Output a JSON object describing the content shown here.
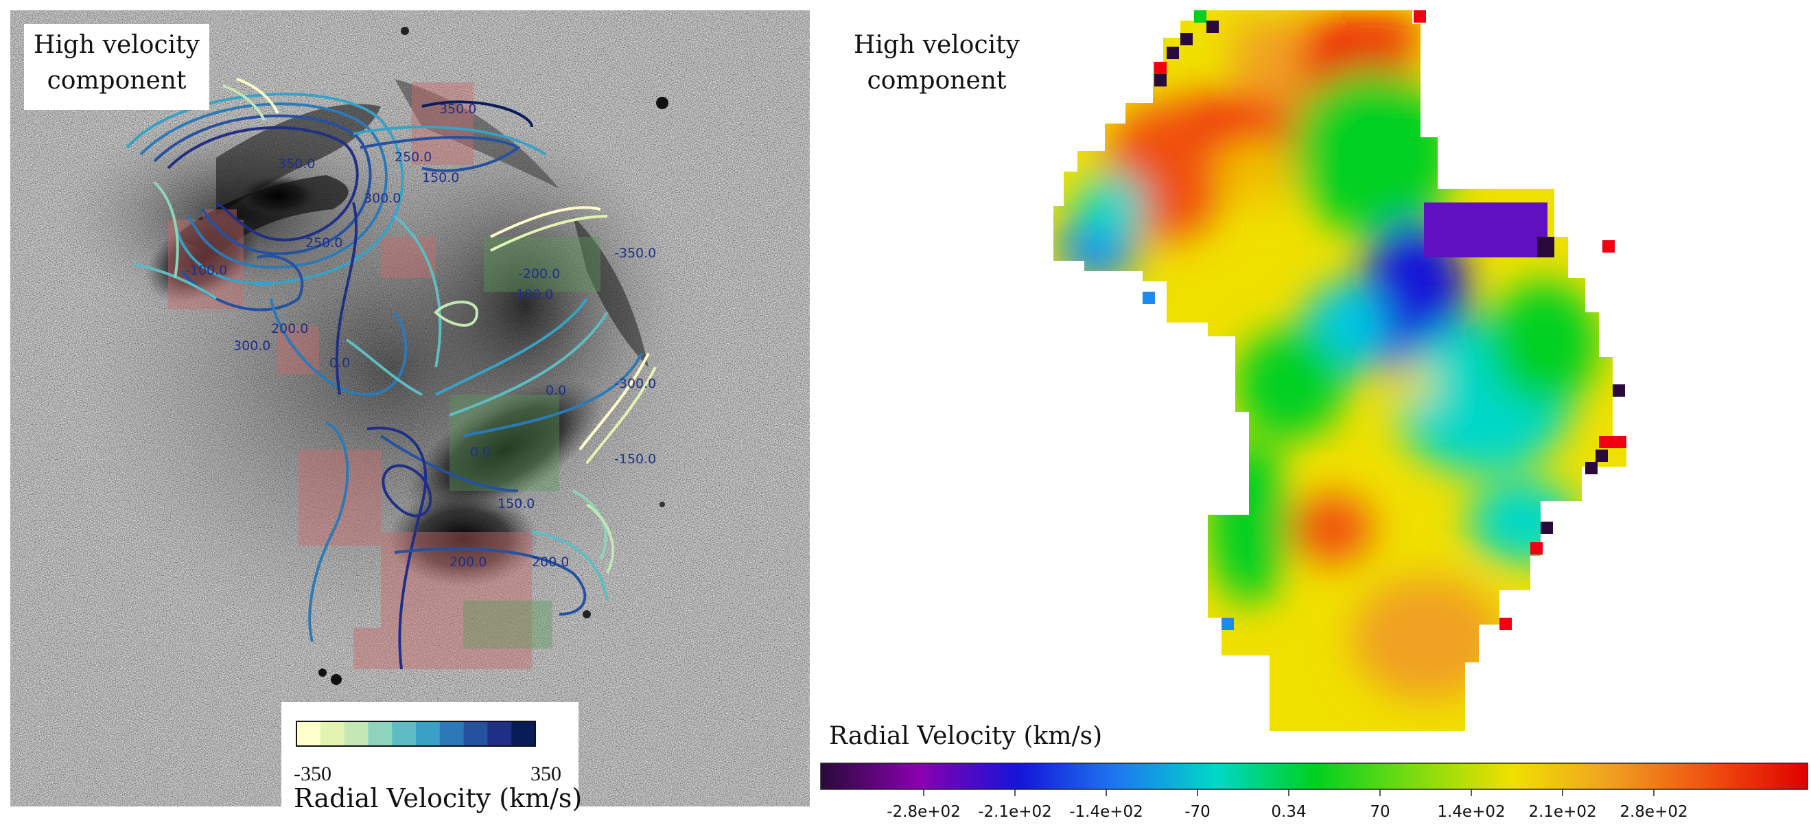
{
  "left_panel": {
    "title_line1": "High velocity",
    "title_line2": "component",
    "colorbar": {
      "min_label": "-350",
      "max_label": "350",
      "label": "Radial Velocity (km/s)",
      "colors": [
        "#ffffcc",
        "#e3f4b2",
        "#c3e8b3",
        "#8fd3bd",
        "#5ebdc3",
        "#38a2c6",
        "#2b7ab7",
        "#2451a0",
        "#1f2f85",
        "#081d58"
      ]
    },
    "contour_labels": [
      "350.0",
      "350.0",
      "250.0",
      "150.0",
      "250.0",
      "300.0",
      "-100.0",
      "200.0",
      "200.0",
      "300.0",
      "0.0",
      "0.0",
      "0.0",
      "150.0",
      "200.0",
      "-200.0",
      "-350.0",
      "-300.0",
      "-150.0",
      "-100.0"
    ]
  },
  "right_panel": {
    "title_line1": "High velocity",
    "title_line2": "component",
    "colorbar_label": "Radial Velocity (km/s)",
    "colorbar_ticks": [
      "-2.8e+02",
      "-2.1e+02",
      "-1.4e+02",
      "-70",
      "0.34",
      "70",
      "1.4e+02",
      "2.1e+02",
      "2.8e+02"
    ],
    "colorbar_stops": [
      "#2a0a3a",
      "#8a00b0",
      "#1414d8",
      "#1e78f0",
      "#00d8c8",
      "#00d020",
      "#7adc10",
      "#f0e000",
      "#f0a020",
      "#f05010",
      "#e00000"
    ]
  }
}
